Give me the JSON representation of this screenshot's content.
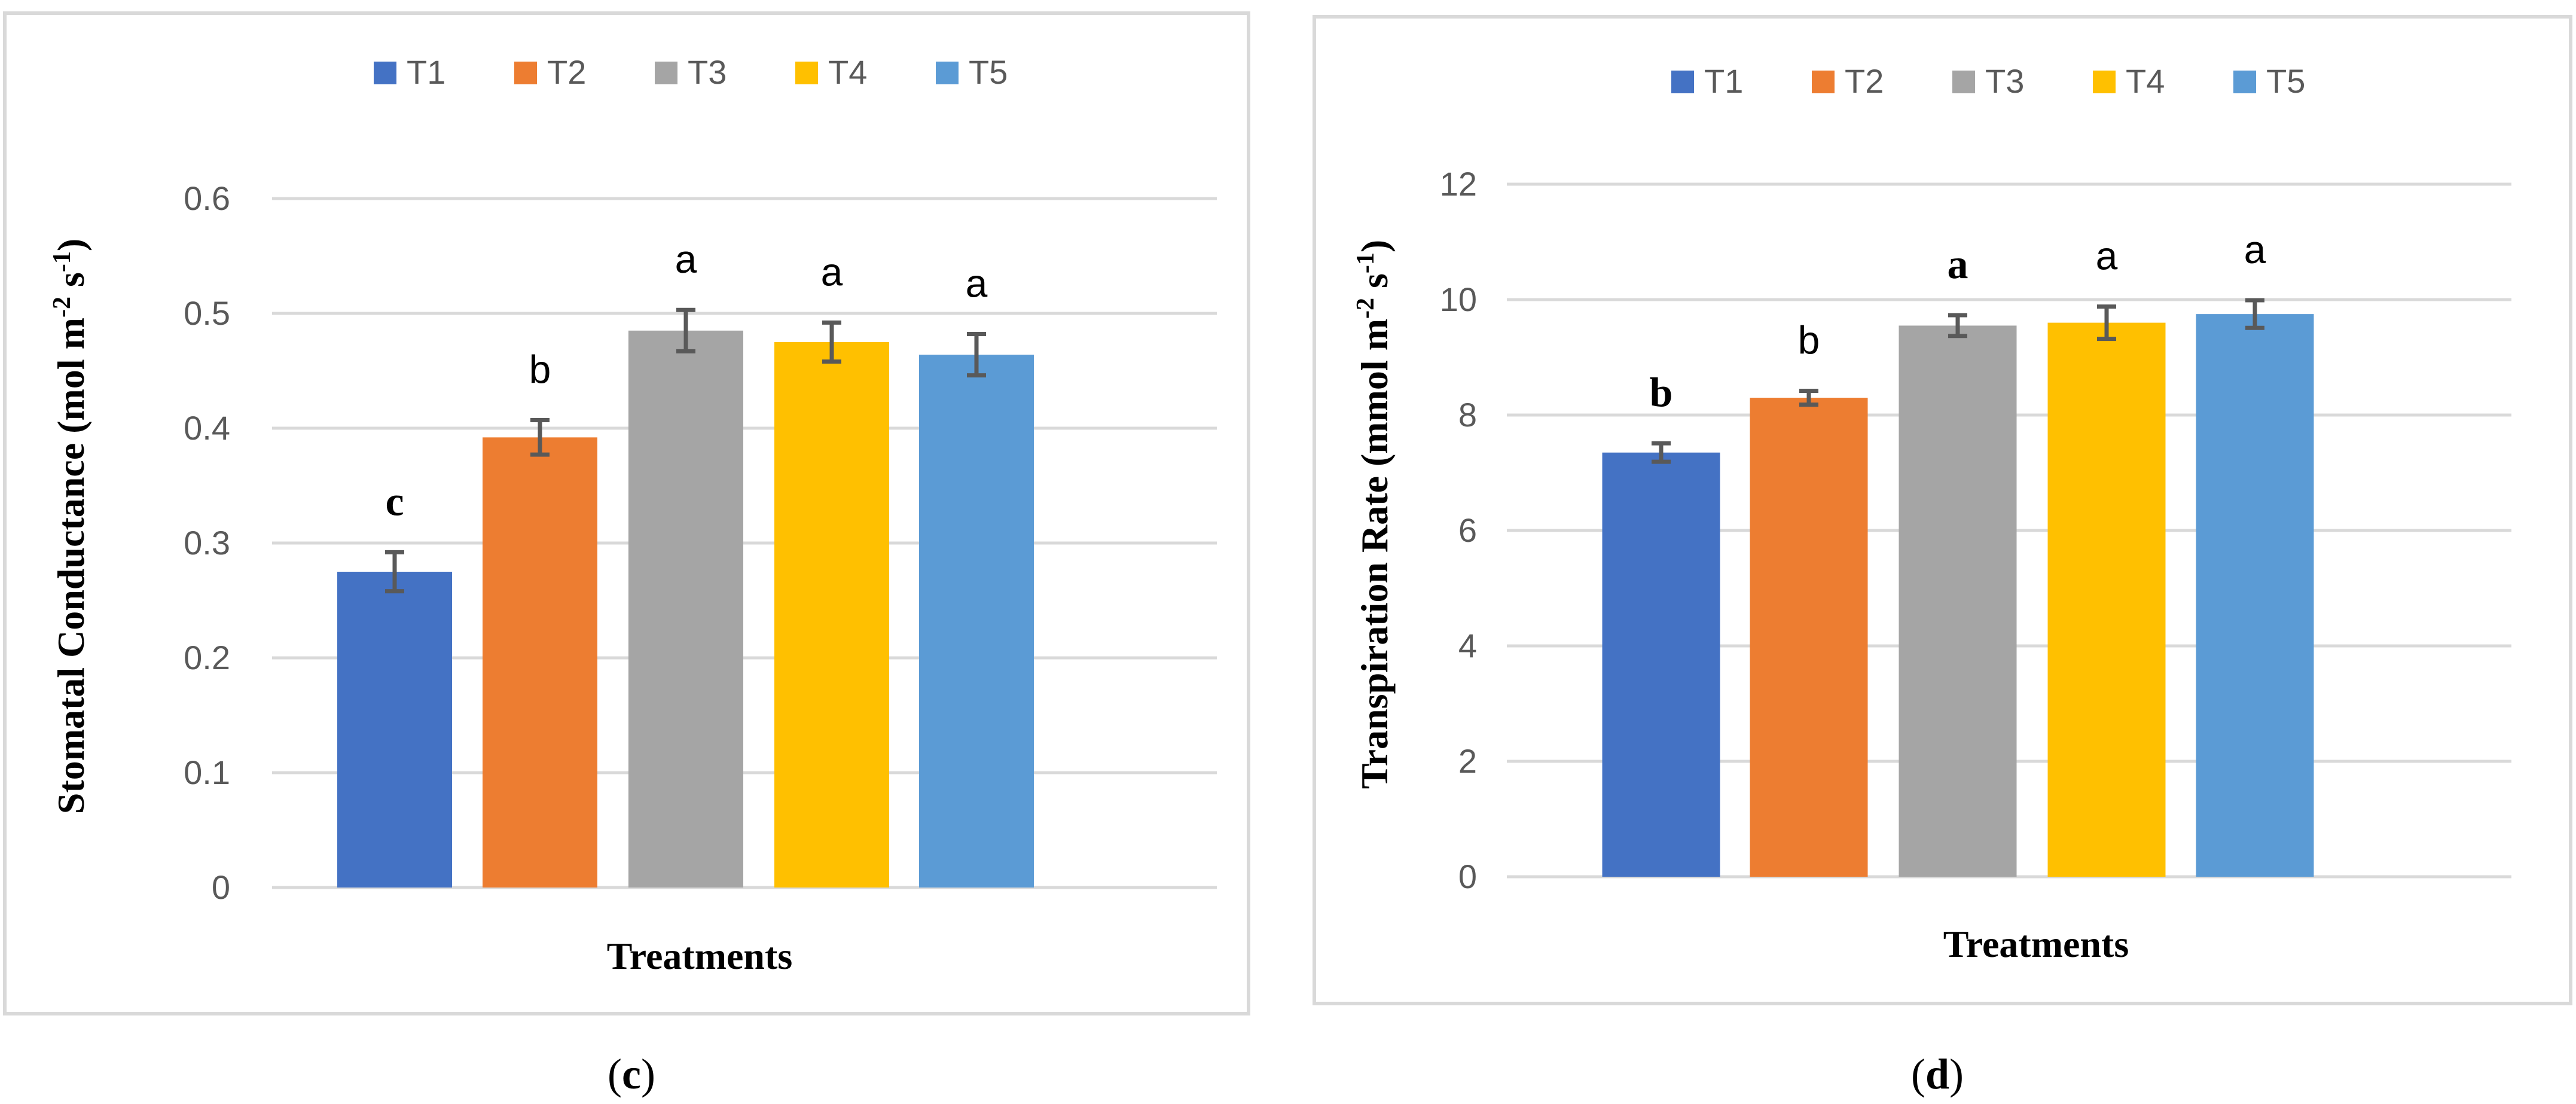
{
  "colors": {
    "T1": "#4472c4",
    "T2": "#ed7d31",
    "T3": "#a5a5a5",
    "T4": "#ffc000",
    "T5": "#5b9bd5"
  },
  "chart_data": [
    {
      "type": "bar",
      "panel_label": "c",
      "xlabel": "Treatments",
      "ylabel": "Stomatal Conductance (mol m",
      "ylabel_sup1": "-2",
      "ylabel_mid": " s",
      "ylabel_sup2": "-1",
      "ylabel_end": ")",
      "ylim": [
        0,
        0.6
      ],
      "y_ticks": [
        "0",
        "0.1",
        "0.2",
        "0.3",
        "0.4",
        "0.5",
        "0.6"
      ],
      "legend": [
        "T1",
        "T2",
        "T3",
        "T4",
        "T5"
      ],
      "legend_position": "top-center",
      "series": [
        {
          "name": "T1",
          "value": 0.275,
          "error": 0.017,
          "letter": "c",
          "letter_style": "serif-bold"
        },
        {
          "name": "T2",
          "value": 0.392,
          "error": 0.015,
          "letter": "b",
          "letter_style": "sans"
        },
        {
          "name": "T3",
          "value": 0.485,
          "error": 0.018,
          "letter": "a",
          "letter_style": "sans"
        },
        {
          "name": "T4",
          "value": 0.475,
          "error": 0.017,
          "letter": "a",
          "letter_style": "sans"
        },
        {
          "name": "T5",
          "value": 0.464,
          "error": 0.018,
          "letter": "a",
          "letter_style": "sans"
        }
      ]
    },
    {
      "type": "bar",
      "panel_label": "d",
      "xlabel": "Treatments",
      "ylabel": "Transpiration Rate (mmol m",
      "ylabel_sup1": "-2",
      "ylabel_mid": " s",
      "ylabel_sup2": "-1",
      "ylabel_end": ")",
      "ylim": [
        0,
        12
      ],
      "y_ticks": [
        "0",
        "2",
        "4",
        "6",
        "8",
        "10",
        "12"
      ],
      "legend": [
        "T1",
        "T2",
        "T3",
        "T4",
        "T5"
      ],
      "legend_position": "top-center",
      "series": [
        {
          "name": "T1",
          "value": 7.35,
          "error": 0.16,
          "letter": "b",
          "letter_style": "serif-bold"
        },
        {
          "name": "T2",
          "value": 8.3,
          "error": 0.12,
          "letter": "b",
          "letter_style": "sans"
        },
        {
          "name": "T3",
          "value": 9.55,
          "error": 0.18,
          "letter": "a",
          "letter_style": "serif-bold"
        },
        {
          "name": "T4",
          "value": 9.6,
          "error": 0.28,
          "letter": "a",
          "letter_style": "sans"
        },
        {
          "name": "T5",
          "value": 9.75,
          "error": 0.24,
          "letter": "a",
          "letter_style": "sans"
        }
      ]
    }
  ]
}
